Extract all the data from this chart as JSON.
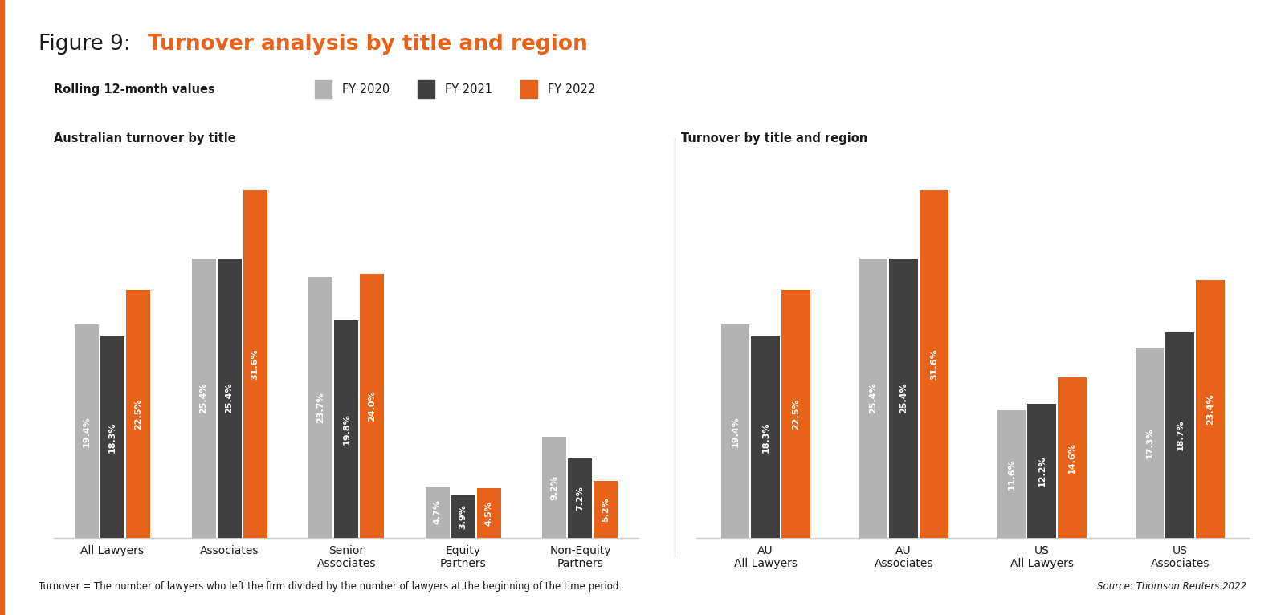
{
  "title_prefix": "Figure 9: ",
  "title_orange": "Turnover analysis by title and region",
  "subtitle": "Rolling 12-month values",
  "legend_labels": [
    "FY 2020",
    "FY 2021",
    "FY 2022"
  ],
  "colors": {
    "fy2020": "#b3b3b3",
    "fy2021": "#404040",
    "fy2022": "#e8621a",
    "title_orange": "#e8621a",
    "background": "#ffffff",
    "axis_line": "#cccccc",
    "grid": "#e0e0e0",
    "text_dark": "#1a1a1a",
    "left_border": "#e8621a"
  },
  "left_chart": {
    "subtitle": "Australian turnover by title",
    "categories": [
      "All Lawyers",
      "Associates",
      "Senior\nAssociates",
      "Equity\nPartners",
      "Non-Equity\nPartners"
    ],
    "fy2020": [
      19.4,
      25.4,
      23.7,
      4.7,
      9.2
    ],
    "fy2021": [
      18.3,
      25.4,
      19.8,
      3.9,
      7.2
    ],
    "fy2022": [
      22.5,
      31.6,
      24.0,
      4.5,
      5.2
    ],
    "labels_2020": [
      "19.4%",
      "25.4%",
      "23.7%",
      "4.7%",
      "9.2%"
    ],
    "labels_2021": [
      "18.3%",
      "25.4%",
      "19.8%",
      "3.9%",
      "7.2%"
    ],
    "labels_2022": [
      "22.5%",
      "31.6%",
      "24.0%",
      "4.5%",
      "5.2%"
    ]
  },
  "right_chart": {
    "subtitle": "Turnover by title and region",
    "categories": [
      "AU\nAll Lawyers",
      "AU\nAssociates",
      "US\nAll Lawyers",
      "US\nAssociates"
    ],
    "fy2020": [
      19.4,
      25.4,
      11.6,
      17.3
    ],
    "fy2021": [
      18.3,
      25.4,
      12.2,
      18.7
    ],
    "fy2022": [
      22.5,
      31.6,
      14.6,
      23.4
    ],
    "labels_2020": [
      "19.4%",
      "25.4%",
      "11.6%",
      "17.3%"
    ],
    "labels_2021": [
      "18.3%",
      "25.4%",
      "12.2%",
      "18.7%"
    ],
    "labels_2022": [
      "22.5%",
      "31.6%",
      "14.6%",
      "23.4%"
    ]
  },
  "footnote": "Turnover = The number of lawyers who left the firm divided by the number of lawyers at the beginning of the time period.",
  "source": "Source: Thomson Reuters 2022",
  "ylim": [
    0,
    36
  ],
  "bar_width": 0.22,
  "bar_fontsize": 8.0
}
